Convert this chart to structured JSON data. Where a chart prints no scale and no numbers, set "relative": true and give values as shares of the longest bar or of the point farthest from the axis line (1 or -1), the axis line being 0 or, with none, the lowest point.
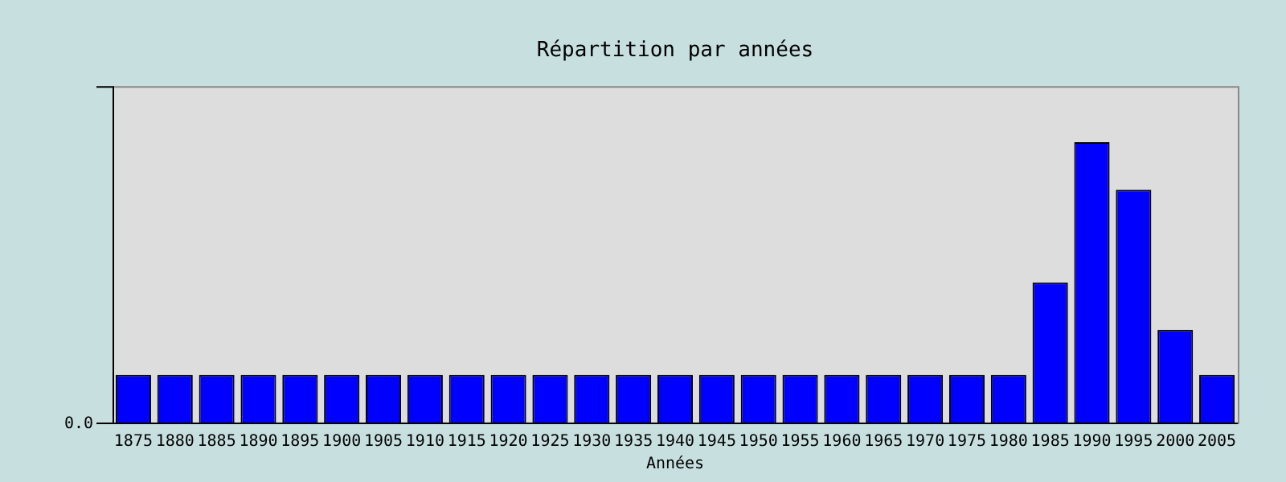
{
  "chart_data": {
    "type": "bar",
    "title": "Répartition par années",
    "xlabel": "Années",
    "relative": true,
    "color": "#0000ff",
    "categories": [
      "1875",
      "1880",
      "1885",
      "1890",
      "1895",
      "1900",
      "1905",
      "1910",
      "1915",
      "1920",
      "1925",
      "1930",
      "1935",
      "1940",
      "1945",
      "1950",
      "1955",
      "1960",
      "1965",
      "1970",
      "1975",
      "1980",
      "1985",
      "1990",
      "1995",
      "2000",
      "2005"
    ],
    "values": [
      0.17,
      0.17,
      0.17,
      0.17,
      0.17,
      0.17,
      0.17,
      0.17,
      0.17,
      0.17,
      0.17,
      0.17,
      0.17,
      0.17,
      0.17,
      0.17,
      0.17,
      0.17,
      0.17,
      0.17,
      0.17,
      0.17,
      0.5,
      1,
      0.83,
      0.33,
      0.17
    ],
    "annotations": [
      "0.0"
    ],
    "grid": false,
    "legend": false
  }
}
